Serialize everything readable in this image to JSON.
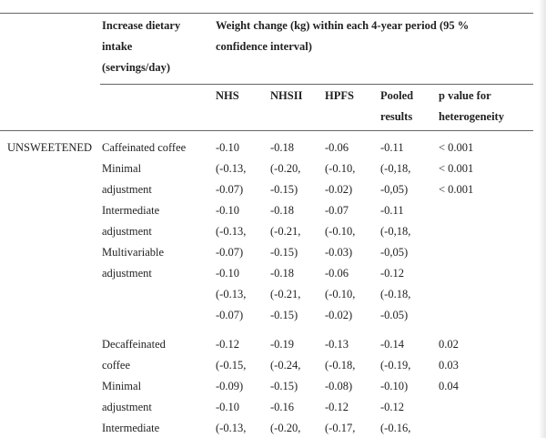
{
  "table": {
    "header": {
      "intake_lines": [
        "Increase dietary",
        "intake",
        "(servings/day)"
      ],
      "weight_change_lines": [
        "Weight change (kg) within each 4-year period (95 %",
        "confidence interval)"
      ],
      "columns": [
        [
          "NHS"
        ],
        [
          "NHSII"
        ],
        [
          "HPFS"
        ],
        [
          "Pooled",
          "results"
        ],
        [
          "p value for",
          "heterogeneity"
        ]
      ]
    },
    "rows": [
      [
        "UNSWEETENED",
        "Caffeinated coffee",
        "-0.10",
        "-0.18",
        "-0.06",
        "-0.11",
        "< 0.001"
      ],
      [
        null,
        "Minimal",
        "(-0.13,",
        "(-0.20,",
        "(-0.10,",
        "(-0,18,",
        "< 0.001"
      ],
      [
        null,
        "adjustment",
        "-0.07)",
        "-0.15)",
        "-0.02)",
        "-0,05)",
        "< 0.001"
      ],
      [
        null,
        "Intermediate",
        "-0.10",
        "-0.18",
        "-0.07",
        "-0.11",
        null
      ],
      [
        null,
        "adjustment",
        "(-0.13,",
        "(-0.21,",
        "(-0.10,",
        "(-0,18,",
        null
      ],
      [
        null,
        "Multivariable",
        "-0.07)",
        "-0.15)",
        "-0.03)",
        "-0,05)",
        null
      ],
      [
        null,
        "adjustment",
        "-0.10",
        "-0.18",
        "-0.06",
        "-0.12",
        null
      ],
      [
        null,
        null,
        "(-0.13,",
        "(-0.21,",
        "(-0.10,",
        "(-0.18,",
        null
      ],
      [
        null,
        null,
        "-0.07)",
        "-0.15)",
        "-0.02)",
        "-0.05)",
        null
      ],
      [
        null,
        "Decaffeinated",
        "-0.12",
        "-0.19",
        "-0.13",
        "-0.14",
        "0.02"
      ],
      [
        null,
        "coffee",
        "(-0.15,",
        "(-0.24,",
        "(-0.18,",
        "(-0.19,",
        "0.03"
      ],
      [
        null,
        "Minimal",
        "-0.09)",
        "-0.15)",
        "-0.08)",
        "-0.10)",
        "0.04"
      ],
      [
        null,
        "adjustment",
        "-0.10",
        "-0.16",
        "-0.12",
        "-0.12",
        null
      ],
      [
        null,
        "Intermediate",
        "(-0.13,",
        "(-0.20,",
        "(-0.17,",
        "(-0.16,",
        null
      ]
    ]
  }
}
